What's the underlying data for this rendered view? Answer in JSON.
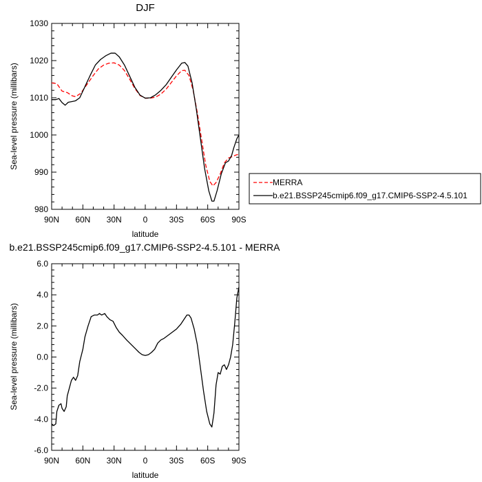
{
  "chart_data": [
    {
      "type": "line",
      "title": "DJF",
      "xlabel": "latitude",
      "ylabel": "Sea-level pressure (millibars)",
      "xlim": [
        90,
        -90
      ],
      "ylim": [
        980,
        1030
      ],
      "x_ticks": [
        90,
        60,
        30,
        0,
        -30,
        -60,
        -90
      ],
      "x_tick_labels": [
        "90N",
        "60N",
        "30N",
        "0",
        "30S",
        "60S",
        "90S"
      ],
      "y_ticks": [
        980,
        990,
        1000,
        1010,
        1020,
        1030
      ],
      "y_tick_labels": [
        "980",
        "990",
        "1000",
        "1010",
        "1020",
        "1030"
      ],
      "grid": false,
      "legend": "right",
      "series": [
        {
          "name": "MERRA",
          "color": "#ff0000",
          "dash": "dashed",
          "points": [
            [
              90,
              1014
            ],
            [
              85,
              1013.8
            ],
            [
              80,
              1011.8
            ],
            [
              75,
              1011.4
            ],
            [
              70,
              1010.5
            ],
            [
              67,
              1010.3
            ],
            [
              62,
              1011.2
            ],
            [
              55,
              1014
            ],
            [
              50,
              1016
            ],
            [
              45,
              1017.8
            ],
            [
              40,
              1018.8
            ],
            [
              35,
              1019.3
            ],
            [
              30,
              1019.4
            ],
            [
              25,
              1018.8
            ],
            [
              20,
              1017.3
            ],
            [
              15,
              1015
            ],
            [
              10,
              1012.5
            ],
            [
              5,
              1010.6
            ],
            [
              0,
              1009.9
            ],
            [
              -5,
              1009.9
            ],
            [
              -10,
              1010.2
            ],
            [
              -15,
              1011
            ],
            [
              -20,
              1012.3
            ],
            [
              -25,
              1014.1
            ],
            [
              -30,
              1015.9
            ],
            [
              -35,
              1017.3
            ],
            [
              -38,
              1017.4
            ],
            [
              -42,
              1016
            ],
            [
              -46,
              1012
            ],
            [
              -50,
              1006
            ],
            [
              -54,
              999
            ],
            [
              -58,
              992
            ],
            [
              -62,
              987.5
            ],
            [
              -65,
              986.3
            ],
            [
              -68,
              987.2
            ],
            [
              -72,
              989.5
            ],
            [
              -76,
              992.5
            ],
            [
              -80,
              993.8
            ],
            [
              -84,
              994.2
            ],
            [
              -87,
              994.6
            ],
            [
              -90,
              994.8
            ]
          ]
        },
        {
          "name": "b.e21.BSSP245cmip6.f09_g17.CMIP6-SSP2-4.5.101",
          "color": "#000000",
          "dash": "solid",
          "points": [
            [
              90,
              1009.5
            ],
            [
              86,
              1009.5
            ],
            [
              83,
              1009.8
            ],
            [
              80,
              1008.7
            ],
            [
              77,
              1008
            ],
            [
              74,
              1008.8
            ],
            [
              70,
              1009
            ],
            [
              67,
              1009.2
            ],
            [
              63,
              1010
            ],
            [
              58,
              1013
            ],
            [
              53,
              1016
            ],
            [
              48,
              1018.8
            ],
            [
              43,
              1020.3
            ],
            [
              38,
              1021.3
            ],
            [
              33,
              1022
            ],
            [
              29,
              1022
            ],
            [
              25,
              1021
            ],
            [
              20,
              1018.8
            ],
            [
              15,
              1015.8
            ],
            [
              10,
              1012.8
            ],
            [
              5,
              1010.7
            ],
            [
              0,
              1009.9
            ],
            [
              -5,
              1010
            ],
            [
              -10,
              1010.8
            ],
            [
              -15,
              1012
            ],
            [
              -20,
              1013.5
            ],
            [
              -25,
              1015.5
            ],
            [
              -30,
              1017.5
            ],
            [
              -35,
              1019.3
            ],
            [
              -38,
              1019.5
            ],
            [
              -41,
              1018.5
            ],
            [
              -45,
              1014
            ],
            [
              -49,
              1007
            ],
            [
              -53,
              999
            ],
            [
              -57,
              991
            ],
            [
              -61,
              985
            ],
            [
              -64,
              982.2
            ],
            [
              -66,
              982.2
            ],
            [
              -69,
              985
            ],
            [
              -73,
              989.5
            ],
            [
              -77,
              992.5
            ],
            [
              -80,
              993
            ],
            [
              -83,
              994.5
            ],
            [
              -85,
              996.5
            ],
            [
              -88,
              999
            ],
            [
              -90,
              1000
            ]
          ]
        }
      ]
    },
    {
      "type": "line",
      "title": "b.e21.BSSP245cmip6.f09_g17.CMIP6-SSP2-4.5.101 - MERRA",
      "xlabel": "latitude",
      "ylabel": "Sea-level pressure (millibars)",
      "xlim": [
        90,
        -90
      ],
      "ylim": [
        -6,
        6
      ],
      "x_ticks": [
        90,
        60,
        30,
        0,
        -30,
        -60,
        -90
      ],
      "x_tick_labels": [
        "90N",
        "60N",
        "30N",
        "0",
        "30S",
        "60S",
        "90S"
      ],
      "y_ticks": [
        -6,
        -4,
        -2,
        0,
        2,
        4,
        6
      ],
      "y_tick_labels": [
        "-6.0",
        "-4.0",
        "-2.0",
        "0.0",
        "2.0",
        "4.0",
        "6.0"
      ],
      "grid": false,
      "series": [
        {
          "color": "#000000",
          "dash": "solid",
          "points": [
            [
              90,
              -4.3
            ],
            [
              88,
              -4.4
            ],
            [
              86,
              -4.3
            ],
            [
              85,
              -3.5
            ],
            [
              83,
              -3.1
            ],
            [
              81,
              -3
            ],
            [
              80,
              -3.3
            ],
            [
              78,
              -3.5
            ],
            [
              76,
              -3.2
            ],
            [
              75,
              -2.5
            ],
            [
              73,
              -2
            ],
            [
              71,
              -1.5
            ],
            [
              69,
              -1.3
            ],
            [
              67,
              -1.5
            ],
            [
              65,
              -1.2
            ],
            [
              63,
              -0.3
            ],
            [
              60,
              0.5
            ],
            [
              58,
              1.3
            ],
            [
              55,
              2
            ],
            [
              52,
              2.6
            ],
            [
              49,
              2.7
            ],
            [
              46,
              2.7
            ],
            [
              44,
              2.8
            ],
            [
              42,
              2.7
            ],
            [
              39,
              2.8
            ],
            [
              37,
              2.6
            ],
            [
              34,
              2.4
            ],
            [
              31,
              2.3
            ],
            [
              28,
              1.9
            ],
            [
              25,
              1.6
            ],
            [
              22,
              1.4
            ],
            [
              18,
              1.1
            ],
            [
              15,
              0.9
            ],
            [
              12,
              0.7
            ],
            [
              9,
              0.5
            ],
            [
              6,
              0.3
            ],
            [
              3,
              0.15
            ],
            [
              0,
              0.1
            ],
            [
              -3,
              0.15
            ],
            [
              -6,
              0.3
            ],
            [
              -9,
              0.5
            ],
            [
              -12,
              0.9
            ],
            [
              -15,
              1.1
            ],
            [
              -18,
              1.2
            ],
            [
              -22,
              1.4
            ],
            [
              -26,
              1.6
            ],
            [
              -30,
              1.8
            ],
            [
              -34,
              2.1
            ],
            [
              -38,
              2.5
            ],
            [
              -40,
              2.7
            ],
            [
              -42,
              2.7
            ],
            [
              -44,
              2.5
            ],
            [
              -47,
              1.8
            ],
            [
              -50,
              0.8
            ],
            [
              -53,
              -0.7
            ],
            [
              -56,
              -2.2
            ],
            [
              -59,
              -3.5
            ],
            [
              -62,
              -4.3
            ],
            [
              -64,
              -4.5
            ],
            [
              -66,
              -3.6
            ],
            [
              -68,
              -1.8
            ],
            [
              -70,
              -1
            ],
            [
              -72,
              -1.1
            ],
            [
              -74,
              -0.6
            ],
            [
              -76,
              -0.5
            ],
            [
              -78,
              -0.8
            ],
            [
              -80,
              -0.5
            ],
            [
              -82,
              0
            ],
            [
              -84,
              0.8
            ],
            [
              -86,
              2.2
            ],
            [
              -88,
              3.8
            ],
            [
              -90,
              4.5
            ]
          ]
        }
      ]
    }
  ]
}
